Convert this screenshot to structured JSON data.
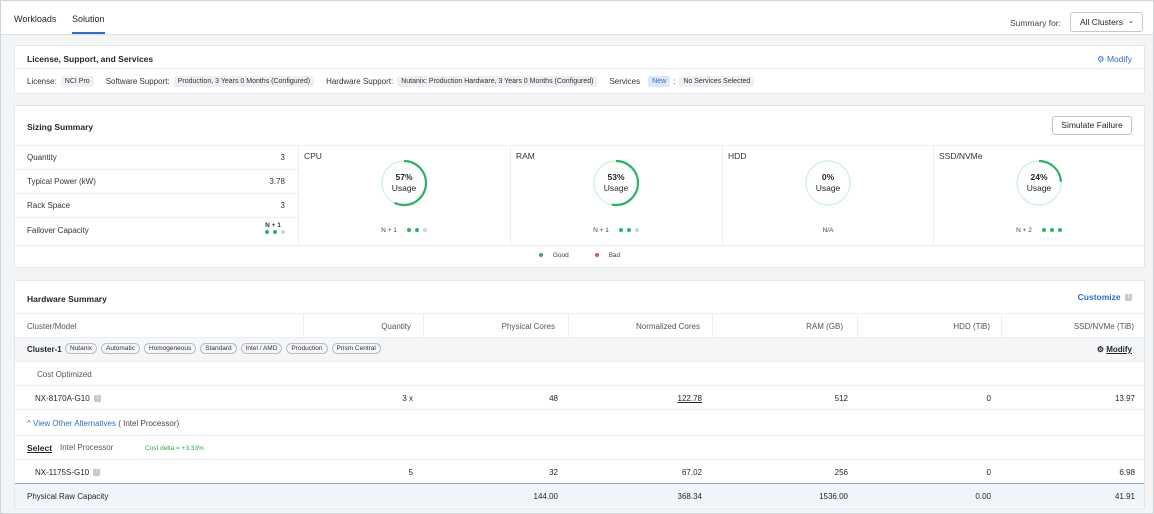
{
  "tabs": [
    {
      "label": "Workloads"
    },
    {
      "label": "Solution"
    }
  ],
  "summary_for": {
    "label": "Summary for:",
    "value": "All Clusters"
  },
  "license_card": {
    "title": "License, Support, and Services",
    "modify": "Modify",
    "license_label": "License:",
    "license_value": "NCI Pro",
    "software_label": "Software Support:",
    "software_value": "Production, 3 Years 0 Months (Configured)",
    "hardware_label": "Hardware Support:",
    "hardware_value": "Nutanix: Production Hardware, 3 Years 0 Months (Configured)",
    "services_label": "Services",
    "services_badge": "New",
    "services_sep": ":",
    "services_value": "No Services Selected"
  },
  "sizing": {
    "title": "Sizing Summary",
    "simulate": "Simulate Failure",
    "rows": [
      {
        "label": "Quantity",
        "value": "3"
      },
      {
        "label": "Typical Power (kW)",
        "value": "3.78"
      },
      {
        "label": "Rack Space",
        "value": "3"
      },
      {
        "label": "Failover Capacity",
        "value": "N + 1"
      }
    ],
    "metrics": [
      {
        "label": "CPU",
        "pct_text": "57%",
        "usage": "Usage",
        "pct": 57,
        "footer": "N + 1",
        "dots": [
          "g",
          "g",
          "x"
        ]
      },
      {
        "label": "RAM",
        "pct_text": "53%",
        "usage": "Usage",
        "pct": 53,
        "footer": "N + 1",
        "dots": [
          "g",
          "g",
          "x"
        ]
      },
      {
        "label": "HDD",
        "pct_text": "0%",
        "usage": "Usage",
        "pct": 0,
        "footer": "N/A",
        "dots": []
      },
      {
        "label": "SSD/NVMe",
        "pct_text": "24%",
        "usage": "Usage",
        "pct": 24,
        "footer": "N + 2",
        "dots": [
          "g",
          "g",
          "g"
        ]
      }
    ],
    "legend_good": "Good",
    "legend_bad": "Bad",
    "colors": {
      "good": "#28b463",
      "bad": "#e2564b",
      "track": "#cfeedd"
    }
  },
  "hardware": {
    "title": "Hardware Summary",
    "customize": "Customize",
    "columns": [
      "Cluster/Model",
      "Quantity",
      "Physical Cores",
      "Normalized Cores",
      "RAM (GB)",
      "HDD (TiB)",
      "SSD/NVMe (TiB)"
    ],
    "cluster_name": "Cluster-1",
    "cluster_tags": [
      "Nutanix",
      "Automatic",
      "Homogeneous",
      "Standard",
      "Intel / AMD",
      "Production",
      "Prism Central"
    ],
    "cluster_modify": "Modify",
    "cost_optimized": "Cost Optimized",
    "model1": {
      "name": "NX-8170A-G10",
      "qty": "3 x",
      "phys": "48",
      "norm": "122.78",
      "ram": "512",
      "hdd": "0",
      "ssd": "13.97"
    },
    "alternatives_link": "View Other Alternatives",
    "alternatives_note": "( Intel Processor)",
    "select": "Select",
    "intel": "Intel Processor",
    "cost_delta": "Cost delta = +3.33%",
    "model2": {
      "name": "NX-1175S-G10",
      "qty": "5",
      "phys": "32",
      "norm": "67.02",
      "ram": "256",
      "hdd": "0",
      "ssd": "6.98"
    },
    "total": {
      "label": "Physical Raw Capacity",
      "phys": "144.00",
      "norm": "368.34",
      "ram": "1536.00",
      "hdd": "0.00",
      "ssd": "41.91"
    }
  }
}
